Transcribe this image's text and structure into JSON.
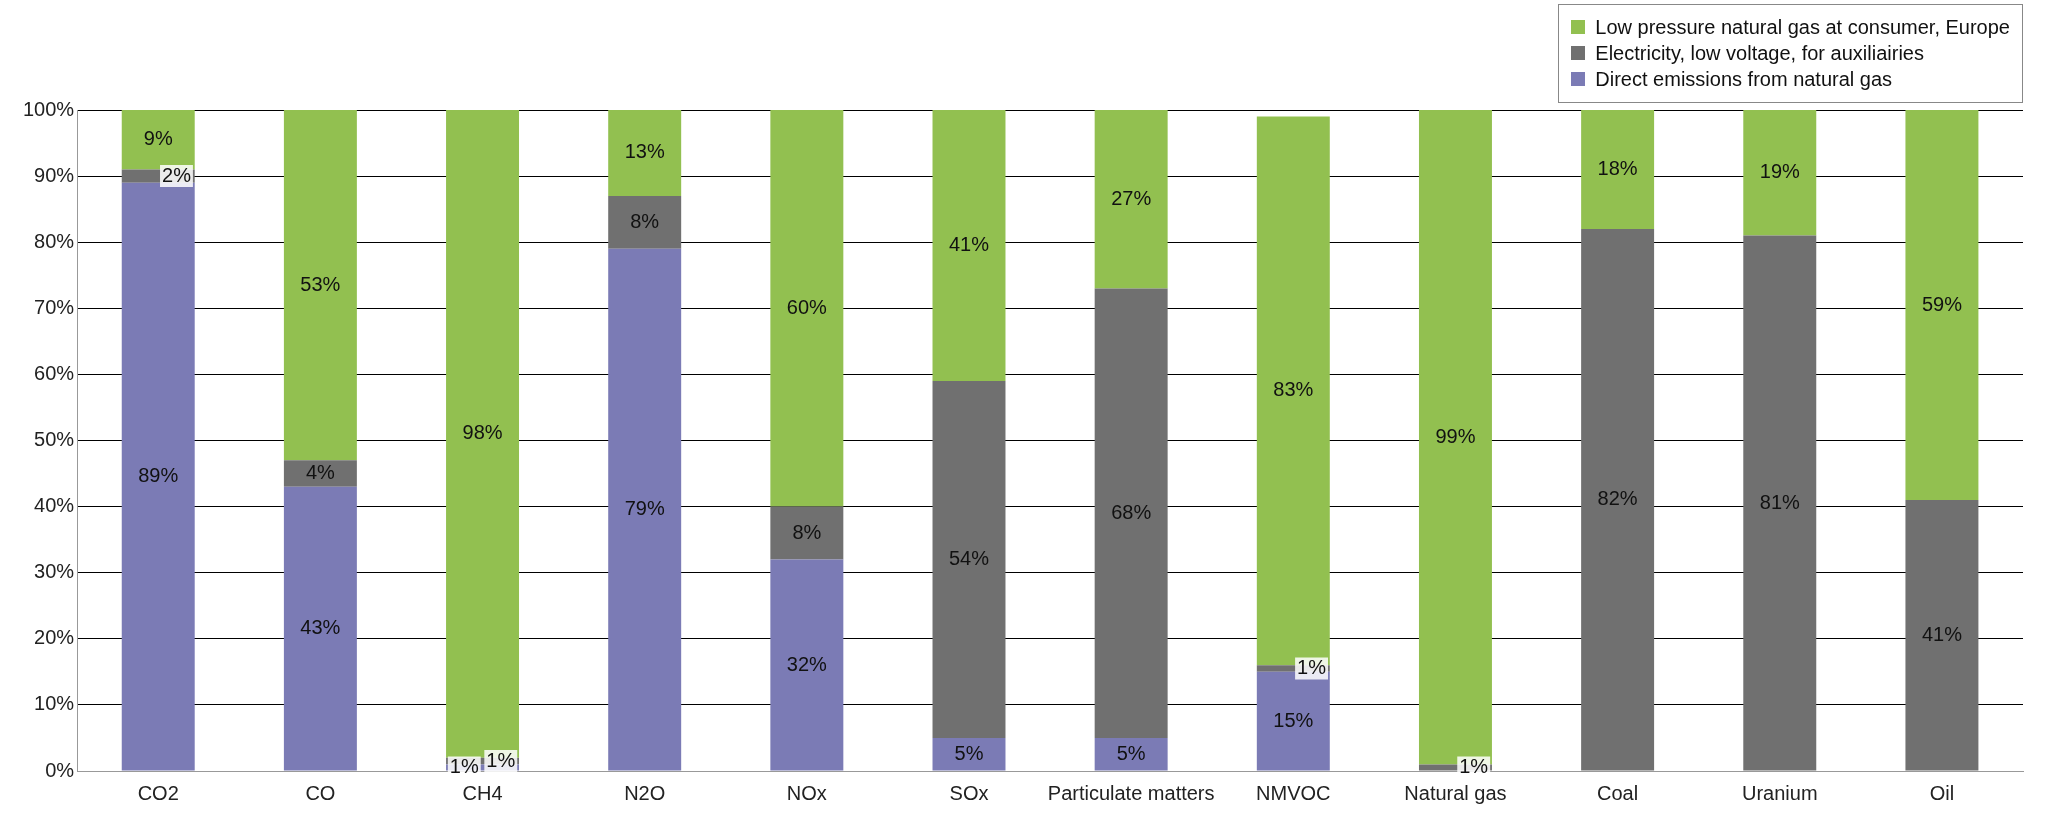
{
  "chart_data": {
    "type": "bar",
    "stacked": true,
    "categories": [
      "CO2",
      "CO",
      "CH4",
      "N2O",
      "NOx",
      "SOx",
      "Particulate matters",
      "NMVOC",
      "Natural gas",
      "Coal",
      "Uranium",
      "Oil"
    ],
    "series": [
      {
        "name": "Direct emissions from natural gas",
        "color": "#7b7bb5",
        "values": [
          89,
          43,
          1,
          79,
          32,
          5,
          5,
          15,
          null,
          null,
          null,
          null
        ],
        "value_labels": [
          "89%",
          "43%",
          "1%",
          "79%",
          "32%",
          "5%",
          "5%",
          "15%",
          null,
          null,
          null,
          null
        ]
      },
      {
        "name": "Electricity, low voltage, for auxiliairies",
        "color": "#707070",
        "values": [
          2,
          4,
          1,
          8,
          8,
          54,
          68,
          1,
          1,
          82,
          81,
          41
        ],
        "value_labels": [
          "2%",
          "4%",
          "1%",
          "8%",
          "8%",
          "54%",
          "68%",
          "1%",
          "1%",
          "82%",
          "81%",
          "41%"
        ]
      },
      {
        "name": "Low pressure natural gas at consumer, Europe",
        "color": "#92c050",
        "values": [
          9,
          53,
          98,
          13,
          60,
          41,
          27,
          83,
          99,
          18,
          19,
          59
        ],
        "value_labels": [
          "9%",
          "53%",
          "98%",
          "13%",
          "60%",
          "41%",
          "27%",
          "83%",
          "99%",
          "18%",
          "19%",
          "59%"
        ]
      }
    ],
    "ylim": [
      0,
      100
    ],
    "yticks": [
      {
        "value": 0,
        "label": "0%"
      },
      {
        "value": 10,
        "label": "10%"
      },
      {
        "value": 20,
        "label": "20%"
      },
      {
        "value": 30,
        "label": "30%"
      },
      {
        "value": 40,
        "label": "40%"
      },
      {
        "value": 50,
        "label": "50%"
      },
      {
        "value": 60,
        "label": "60%"
      },
      {
        "value": 70,
        "label": "70%"
      },
      {
        "value": 80,
        "label": "80%"
      },
      {
        "value": 90,
        "label": "90%"
      },
      {
        "value": 100,
        "label": "100%"
      }
    ],
    "grid": "y",
    "legend": "top right"
  }
}
